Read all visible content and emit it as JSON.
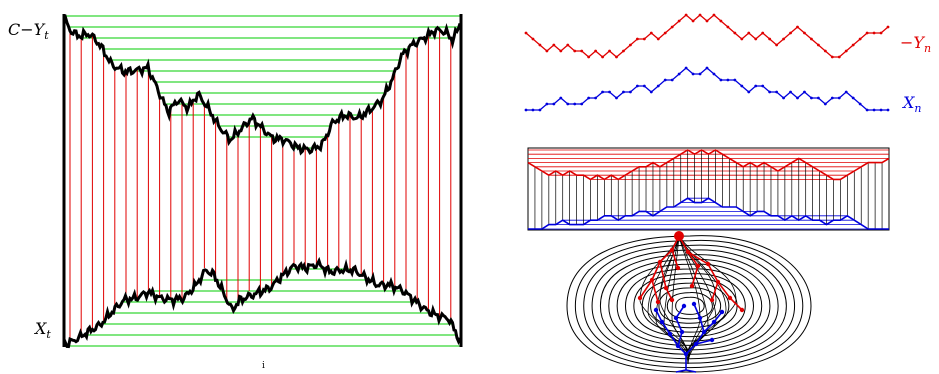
{
  "labels": {
    "c_minus_y": {
      "base": "C−Y",
      "sub": "t"
    },
    "x_t": {
      "base": "X",
      "sub": "t"
    },
    "neg_y_n": {
      "base": "−Y",
      "sub": "n"
    },
    "x_n": {
      "base": "X",
      "sub": "n"
    },
    "tick": "i"
  },
  "colors": {
    "black": "#000000",
    "red": "#e00000",
    "blue": "#0000dd",
    "green": "#00cc00"
  },
  "walks": {
    "neg_y_n": [
      2,
      1,
      0,
      -1,
      0,
      -1,
      0,
      -1,
      -1,
      -2,
      -1,
      -2,
      -1,
      -2,
      -1,
      0,
      1,
      1,
      2,
      1,
      2,
      3,
      4,
      5,
      4,
      5,
      4,
      5,
      4,
      3,
      2,
      1,
      2,
      1,
      2,
      1,
      0,
      1,
      2,
      3,
      2,
      1,
      0,
      -1,
      -2,
      -2,
      -1,
      0,
      1,
      2,
      2,
      2,
      3
    ],
    "x_n": [
      0,
      0,
      0,
      1,
      1,
      2,
      1,
      1,
      1,
      2,
      2,
      3,
      3,
      2,
      3,
      3,
      4,
      4,
      3,
      4,
      5,
      5,
      6,
      7,
      6,
      6,
      7,
      6,
      5,
      5,
      5,
      4,
      3,
      4,
      4,
      3,
      3,
      2,
      3,
      2,
      3,
      2,
      2,
      1,
      2,
      2,
      3,
      2,
      1,
      0,
      0,
      0,
      0
    ]
  }
}
